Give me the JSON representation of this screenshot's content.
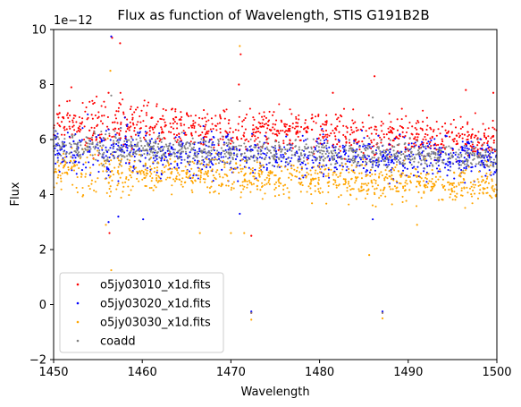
{
  "chart_data": {
    "type": "scatter",
    "title": "Flux as function of Wavelength, STIS G191B2B",
    "xlabel": "Wavelength",
    "ylabel": "Flux",
    "y_offset_text": "1e−12",
    "xlim": [
      1450,
      1500
    ],
    "ylim": [
      -2,
      10
    ],
    "x_ticks": [
      1450,
      1460,
      1470,
      1480,
      1490,
      1500
    ],
    "y_ticks": [
      -2,
      0,
      2,
      4,
      6,
      8,
      10
    ],
    "grid": false,
    "legend_position": "lower-left",
    "series": [
      {
        "name": "o5jy03010_x1d.fits",
        "color": "#ff0000",
        "center_start": 6.6,
        "center_end": 6.0,
        "spread": 0.55,
        "outliers": [
          [
            1456.6,
            9.7
          ],
          [
            1457.5,
            9.5
          ],
          [
            1471.1,
            9.1
          ],
          [
            1470.9,
            8.0
          ],
          [
            1486.2,
            8.3
          ],
          [
            1452.0,
            7.9
          ],
          [
            1456.2,
            7.7
          ],
          [
            1472.3,
            -0.3
          ],
          [
            1487.1,
            -0.3
          ],
          [
            1456.3,
            2.6
          ],
          [
            1472.3,
            2.5
          ],
          [
            1496.5,
            7.8
          ],
          [
            1499.6,
            7.7
          ],
          [
            1481.5,
            7.7
          ]
        ]
      },
      {
        "name": "o5jy03020_x1d.fits",
        "color": "#0000ff",
        "center_start": 5.6,
        "center_end": 5.3,
        "spread": 0.55,
        "outliers": [
          [
            1456.5,
            9.75
          ],
          [
            1457.3,
            3.2
          ],
          [
            1460.1,
            3.1
          ],
          [
            1471.0,
            3.3
          ],
          [
            1486.0,
            3.1
          ],
          [
            1472.3,
            -0.25
          ],
          [
            1487.1,
            -0.25
          ],
          [
            1456.2,
            3.0
          ]
        ]
      },
      {
        "name": "o5jy03030_x1d.fits",
        "color": "#ffa500",
        "center_start": 4.9,
        "center_end": 4.3,
        "spread": 0.5,
        "outliers": [
          [
            1456.4,
            8.5
          ],
          [
            1471.0,
            9.4
          ],
          [
            1456.5,
            1.25
          ],
          [
            1485.6,
            1.8
          ],
          [
            1472.3,
            -0.55
          ],
          [
            1487.1,
            -0.5
          ],
          [
            1455.9,
            2.9
          ],
          [
            1466.5,
            2.6
          ],
          [
            1471.5,
            2.6
          ],
          [
            1470.0,
            2.6
          ],
          [
            1491.0,
            2.9
          ]
        ]
      },
      {
        "name": "coadd",
        "color": "#808080",
        "center_start": 5.75,
        "center_end": 5.35,
        "spread": 0.35,
        "outliers": [
          [
            1456.5,
            7.6
          ],
          [
            1471.0,
            7.4
          ],
          [
            1472.3,
            -0.3
          ],
          [
            1487.1,
            -0.3
          ],
          [
            1486.0,
            6.8
          ]
        ]
      }
    ]
  }
}
